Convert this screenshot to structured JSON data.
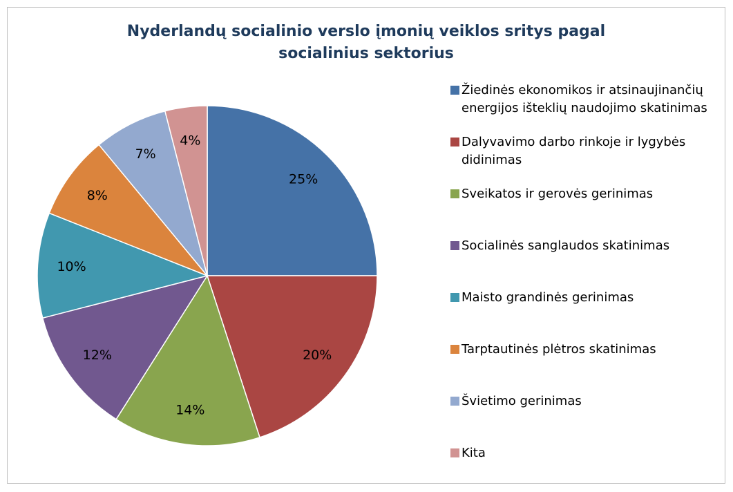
{
  "chart_data": {
    "type": "pie",
    "title": "Nyderlandų socialinio verslo įmonių veiklos sritys pagal socialinius sektorius",
    "categories": [
      "Žiedinės ekonomikos ir atsinaujinančių energijos išteklių naudojimo skatinimas",
      "Dalyvavimo darbo rinkoje ir lygybės didinimas",
      "Sveikatos ir gerovės gerinimas",
      "Socialinės sanglaudos skatinimas",
      "Maisto grandinės gerinimas",
      "Tarptautinės plėtros skatinimas",
      "Švietimo gerinimas",
      "Kita"
    ],
    "values": [
      25,
      20,
      14,
      12,
      10,
      8,
      7,
      4
    ],
    "value_labels": [
      "25%",
      "20%",
      "14%",
      "12%",
      "10%",
      "8%",
      "7%",
      "4%"
    ],
    "colors": [
      "#4572a7",
      "#aa4643",
      "#89a54e",
      "#71588f",
      "#4198af",
      "#db843d",
      "#93a9cf",
      "#d19392"
    ],
    "legend": "right"
  }
}
